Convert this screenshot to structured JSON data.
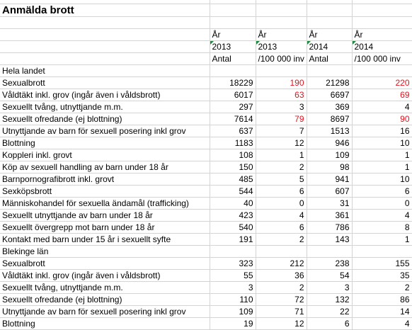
{
  "title": "Anmälda brott",
  "headers": {
    "row1": [
      "År",
      "År",
      "År",
      "År"
    ],
    "row2": [
      "2013",
      "2013",
      "2014",
      "2014"
    ],
    "row3": [
      "Antal",
      "/100 000 inv",
      "Antal",
      "/100 000 inv"
    ]
  },
  "sections": [
    {
      "region": "Hela landet",
      "rows": [
        {
          "label": "Sexualbrott",
          "values": [
            "18229",
            "190",
            "21298",
            "220"
          ],
          "red": [
            false,
            true,
            false,
            true
          ]
        },
        {
          "label": "Våldtäkt inkl. grov (ingår även i våldsbrott)",
          "values": [
            "6017",
            "63",
            "6697",
            "69"
          ],
          "red": [
            false,
            true,
            false,
            true
          ]
        },
        {
          "label": "Sexuellt tvång, utnyttjande m.m.",
          "values": [
            "297",
            "3",
            "369",
            "4"
          ],
          "red": [
            false,
            false,
            false,
            false
          ]
        },
        {
          "label": "Sexuellt ofredande (ej blottning)",
          "values": [
            "7614",
            "79",
            "8697",
            "90"
          ],
          "red": [
            false,
            true,
            false,
            true
          ]
        },
        {
          "label": "Utnyttjande av barn för sexuell posering inkl grov",
          "values": [
            "637",
            "7",
            "1513",
            "16"
          ],
          "red": [
            false,
            false,
            false,
            false
          ]
        },
        {
          "label": "Blottning",
          "values": [
            "1183",
            "12",
            "946",
            "10"
          ],
          "red": [
            false,
            false,
            false,
            false
          ]
        },
        {
          "label": "Koppleri inkl. grovt",
          "values": [
            "108",
            "1",
            "109",
            "1"
          ],
          "red": [
            false,
            false,
            false,
            false
          ]
        },
        {
          "label": "Köp av sexuell handling av barn under 18 år",
          "values": [
            "150",
            "2",
            "98",
            "1"
          ],
          "red": [
            false,
            false,
            false,
            false
          ]
        },
        {
          "label": "Barnpornografibrott inkl. grovt",
          "values": [
            "485",
            "5",
            "941",
            "10"
          ],
          "red": [
            false,
            false,
            false,
            false
          ]
        },
        {
          "label": "Sexköpsbrott",
          "values": [
            "544",
            "6",
            "607",
            "6"
          ],
          "red": [
            false,
            false,
            false,
            false
          ]
        },
        {
          "label": "Människohandel för sexuella ändamål (trafficking)",
          "values": [
            "40",
            "0",
            "31",
            "0"
          ],
          "red": [
            false,
            false,
            false,
            false
          ]
        },
        {
          "label": "Sexuellt utnyttjande av barn under 18 år",
          "values": [
            "423",
            "4",
            "361",
            "4"
          ],
          "red": [
            false,
            false,
            false,
            false
          ]
        },
        {
          "label": "Sexuellt övergrepp mot barn under 18 år",
          "values": [
            "540",
            "6",
            "786",
            "8"
          ],
          "red": [
            false,
            false,
            false,
            false
          ]
        },
        {
          "label": "Kontakt med barn under 15 år i sexuellt syfte",
          "values": [
            "191",
            "2",
            "143",
            "1"
          ],
          "red": [
            false,
            false,
            false,
            false
          ]
        }
      ]
    },
    {
      "region": "Blekinge län",
      "rows": [
        {
          "label": "Sexualbrott",
          "values": [
            "323",
            "212",
            "238",
            "155"
          ],
          "red": [
            false,
            false,
            false,
            false
          ]
        },
        {
          "label": "Våldtäkt inkl. grov (ingår även i våldsbrott)",
          "values": [
            "55",
            "36",
            "54",
            "35"
          ],
          "red": [
            false,
            false,
            false,
            false
          ]
        },
        {
          "label": "Sexuellt tvång, utnyttjande m.m.",
          "values": [
            "3",
            "2",
            "3",
            "2"
          ],
          "red": [
            false,
            false,
            false,
            false
          ]
        },
        {
          "label": "Sexuellt ofredande (ej blottning)",
          "values": [
            "110",
            "72",
            "132",
            "86"
          ],
          "red": [
            false,
            false,
            false,
            false
          ]
        },
        {
          "label": "Utnyttjande av barn för sexuell posering inkl grov",
          "values": [
            "109",
            "71",
            "22",
            "14"
          ],
          "red": [
            false,
            false,
            false,
            false
          ]
        },
        {
          "label": "Blottning",
          "values": [
            "19",
            "12",
            "6",
            "4"
          ],
          "red": [
            false,
            false,
            false,
            false
          ]
        }
      ]
    }
  ],
  "colors": {
    "red_value": "#e0141e",
    "gridline": "#d4d4d4",
    "error_triangle": "#1e8a3c"
  }
}
